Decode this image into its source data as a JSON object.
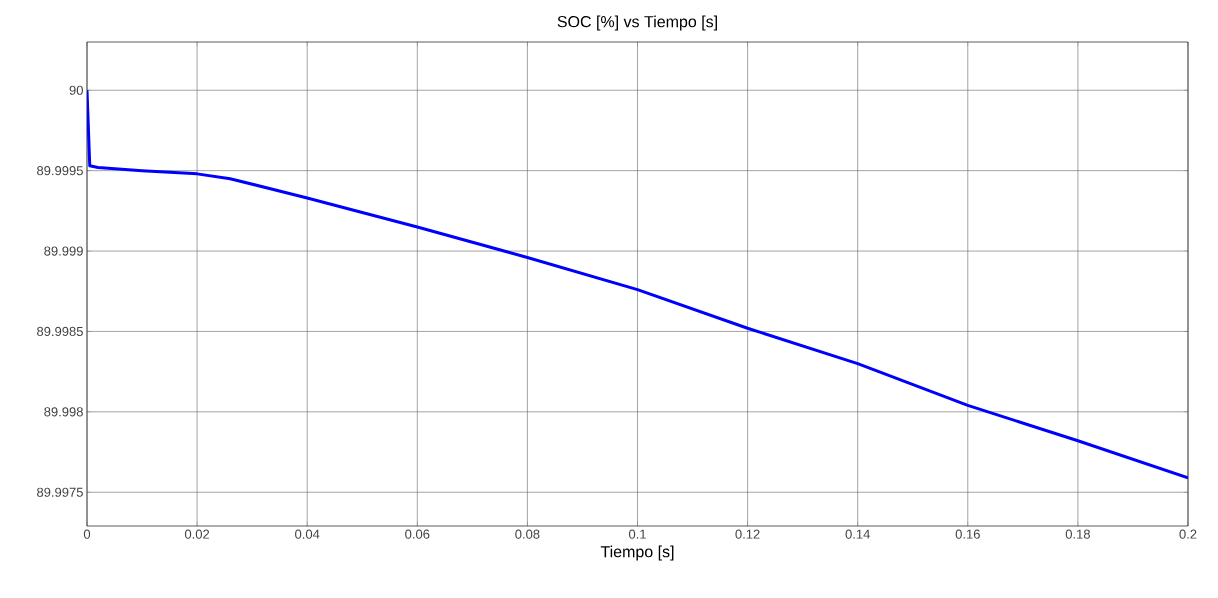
{
  "chart_data": {
    "type": "line",
    "title": "SOC [%] vs Tiempo [s]",
    "xlabel": "Tiempo [s]",
    "x": [
      0,
      0.0005,
      0.002,
      0.01,
      0.02,
      0.026,
      0.04,
      0.06,
      0.08,
      0.1,
      0.12,
      0.14,
      0.16,
      0.18,
      0.2
    ],
    "series": [
      {
        "color": "#0000ff",
        "values": [
          90,
          89.99953,
          89.99952,
          89.9995,
          89.99948,
          89.99945,
          89.99933,
          89.99915,
          89.99896,
          89.99876,
          89.99852,
          89.9983,
          89.99804,
          89.99782,
          89.99759
        ]
      }
    ],
    "xlim": [
      0,
      0.2
    ],
    "ylim": [
      89.99729,
      90.0003
    ],
    "xticks": [
      0,
      0.02,
      0.04,
      0.06,
      0.08,
      0.1,
      0.12,
      0.14,
      0.16,
      0.18,
      0.2
    ],
    "yticks": [
      89.9975,
      89.998,
      89.9985,
      89.999,
      89.9995,
      90
    ],
    "grid": true,
    "line_style": "solid",
    "marker": "none"
  }
}
